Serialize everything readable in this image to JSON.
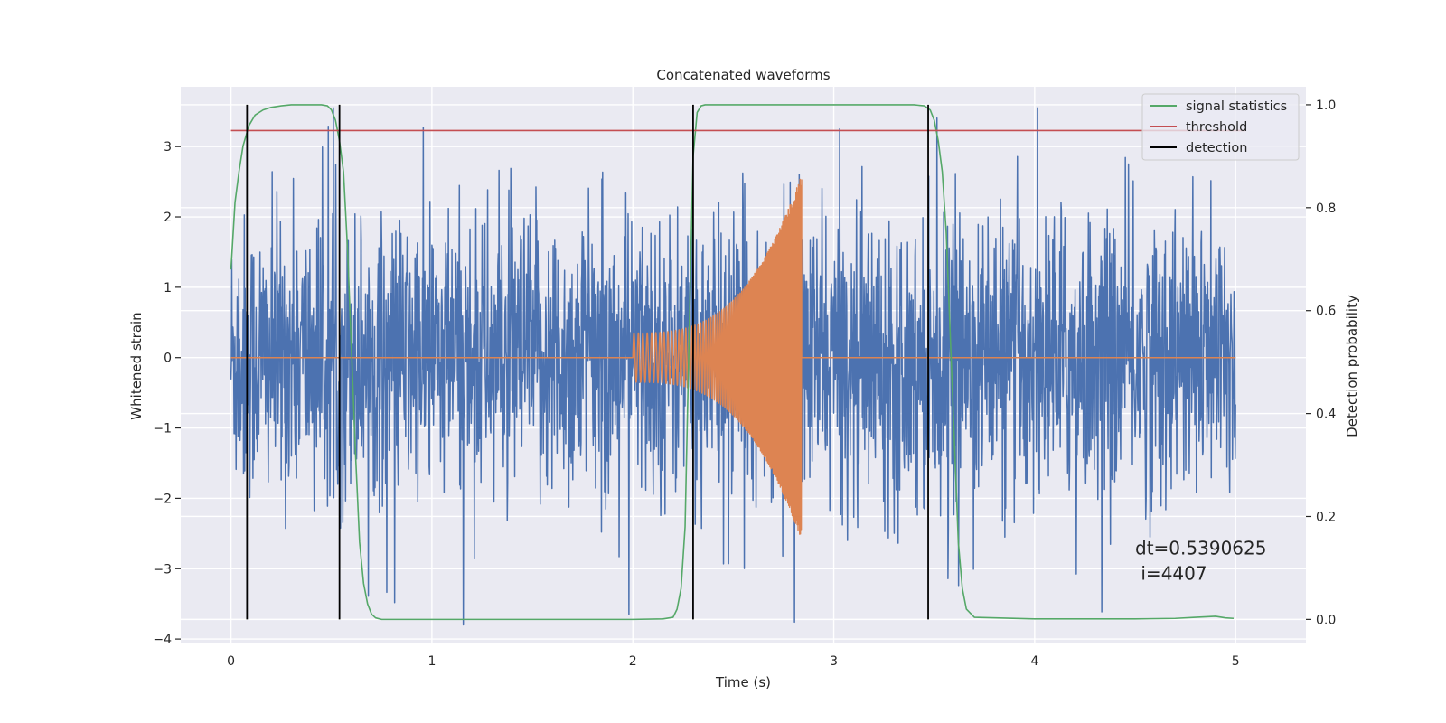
{
  "chart_data": {
    "type": "line",
    "title": "Concatenated waveforms",
    "xlabel": "Time (s)",
    "ylabel": "Whitened strain",
    "y2label": "Detection probability",
    "xlim": [
      -0.25,
      5.35
    ],
    "ylim": [
      -4.05,
      3.85
    ],
    "y2lim": [
      -0.045,
      1.035
    ],
    "xticks": [
      0,
      1,
      2,
      3,
      4,
      5
    ],
    "xtick_labels": [
      "0",
      "1",
      "2",
      "3",
      "4",
      "5"
    ],
    "yticks": [
      -4,
      -3,
      -2,
      -1,
      0,
      1,
      2,
      3
    ],
    "ytick_labels": [
      "−4",
      "−3",
      "−2",
      "−1",
      "0",
      "1",
      "2",
      "3"
    ],
    "y2ticks": [
      0.0,
      0.2,
      0.4,
      0.6,
      0.8,
      1.0
    ],
    "y2tick_labels": [
      "0.0",
      "0.2",
      "0.4",
      "0.6",
      "0.8",
      "1.0"
    ],
    "grid": true,
    "legend_position": "top-right",
    "legend": [
      {
        "label": "signal statistics",
        "color": "#55a868"
      },
      {
        "label": "threshold",
        "color": "#c44e52"
      },
      {
        "label": "detection",
        "color": "#000000"
      }
    ],
    "series": [
      {
        "role": "noisy strain",
        "axis": "left",
        "color": "#4c72b0",
        "x_range": [
          0,
          5
        ],
        "std": 1.0,
        "samples": 2560
      },
      {
        "role": "injected chirp",
        "axis": "left",
        "color": "#dd8452",
        "segments": [
          {
            "x_range": [
              0,
              2
            ],
            "value": 0
          },
          {
            "x_range": [
              2.0,
              2.84
            ],
            "amplitude": [
              0.35,
              2.6
            ],
            "freq_hz": [
              45,
              260
            ]
          },
          {
            "x_range": [
              2.84,
              5
            ],
            "value": 0
          }
        ]
      },
      {
        "name": "signal statistics",
        "axis": "right",
        "color": "#55a868",
        "x": [
          0.0,
          0.02,
          0.04,
          0.06,
          0.09,
          0.12,
          0.16,
          0.2,
          0.25,
          0.3,
          0.35,
          0.4,
          0.45,
          0.48,
          0.5,
          0.52,
          0.54,
          0.56,
          0.58,
          0.6,
          0.62,
          0.64,
          0.66,
          0.68,
          0.7,
          0.72,
          0.75,
          1.0,
          1.5,
          2.0,
          2.15,
          2.2,
          2.22,
          2.24,
          2.26,
          2.28,
          2.3,
          2.32,
          2.34,
          2.36,
          2.4,
          2.6,
          3.0,
          3.3,
          3.4,
          3.45,
          3.48,
          3.5,
          3.52,
          3.54,
          3.56,
          3.58,
          3.6,
          3.62,
          3.64,
          3.66,
          3.7,
          4.0,
          4.5,
          4.7,
          4.8,
          4.9,
          4.95,
          4.99
        ],
        "values": [
          0.68,
          0.81,
          0.87,
          0.92,
          0.96,
          0.98,
          0.99,
          0.995,
          0.998,
          1.0,
          1.0,
          1.0,
          1.0,
          0.998,
          0.99,
          0.97,
          0.93,
          0.87,
          0.72,
          0.52,
          0.32,
          0.15,
          0.07,
          0.03,
          0.01,
          0.003,
          0.0,
          0.0,
          0.0,
          0.0,
          0.001,
          0.004,
          0.02,
          0.06,
          0.18,
          0.55,
          0.9,
          0.985,
          0.998,
          1.0,
          1.0,
          1.0,
          1.0,
          1.0,
          1.0,
          0.998,
          0.99,
          0.97,
          0.93,
          0.87,
          0.75,
          0.55,
          0.35,
          0.15,
          0.06,
          0.02,
          0.004,
          0.001,
          0.001,
          0.002,
          0.004,
          0.006,
          0.003,
          0.002
        ]
      },
      {
        "name": "threshold",
        "axis": "right",
        "color": "#c44e52",
        "x": [
          0,
          5.05
        ],
        "values": [
          0.95,
          0.95
        ]
      },
      {
        "name": "detection",
        "axis": "right",
        "color": "#000000",
        "type": "vlines",
        "x": [
          0.08,
          0.54,
          2.3,
          3.47
        ],
        "range": [
          0,
          1
        ]
      }
    ],
    "annotations": [
      {
        "text": "dt=0.5390625",
        "x": 4.5,
        "y": -2.8
      },
      {
        "text": " i=4407",
        "x": 4.5,
        "y": -3.16
      }
    ]
  },
  "style": {
    "axes_bg": "#eaeaf2",
    "grid_color": "#ffffff",
    "text_color": "#262626"
  }
}
